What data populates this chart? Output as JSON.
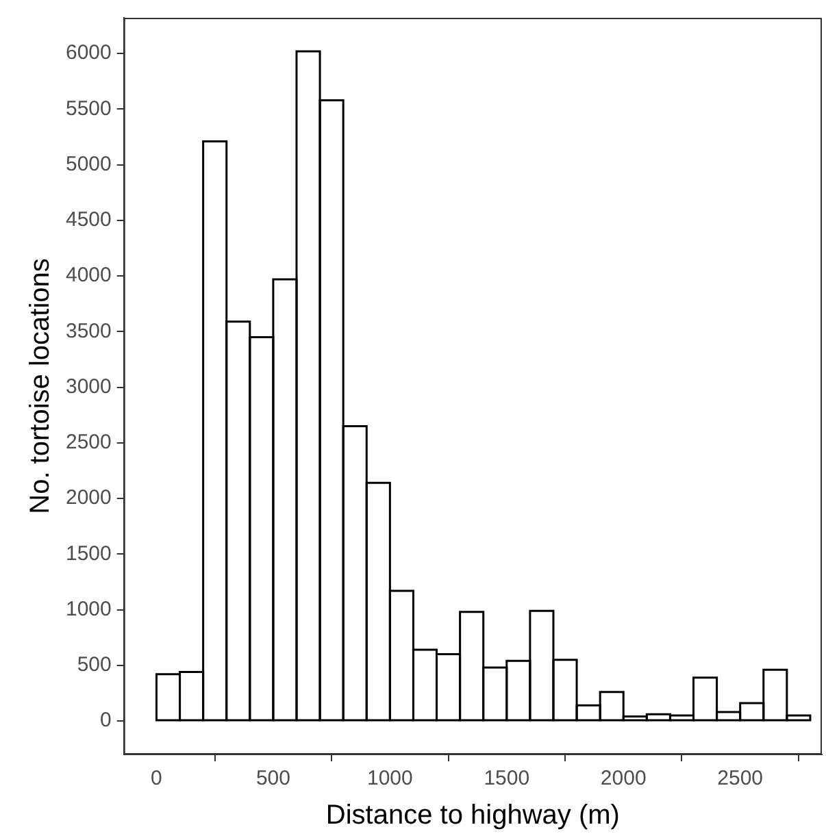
{
  "chart_data": {
    "type": "histogram",
    "xlabel": "Distance to highway (m)",
    "ylabel": "No. tortoise locations",
    "bins": [
      0,
      100,
      200,
      300,
      400,
      500,
      600,
      700,
      800,
      900,
      1000,
      1100,
      1200,
      1300,
      1400,
      1500,
      1600,
      1700,
      1800,
      1900,
      2000,
      2100,
      2200,
      2300,
      2400,
      2500,
      2600,
      2700,
      2800
    ],
    "values": [
      420,
      440,
      5210,
      3590,
      3450,
      3970,
      6020,
      5580,
      2650,
      2140,
      1170,
      640,
      600,
      980,
      480,
      540,
      990,
      550,
      140,
      260,
      40,
      60,
      50,
      390,
      80,
      160,
      460,
      50
    ],
    "color": "#ffffff",
    "xlim": [
      -140,
      2850
    ],
    "xticks": [
      0,
      500,
      1000,
      1500,
      2000,
      2500
    ],
    "ylim": [
      -301,
      6321
    ],
    "yticks": [
      0,
      500,
      1000,
      1500,
      2000,
      2500,
      3000,
      3500,
      4000,
      4500,
      5000,
      5500,
      6000
    ],
    "grid": false,
    "legend": false
  }
}
